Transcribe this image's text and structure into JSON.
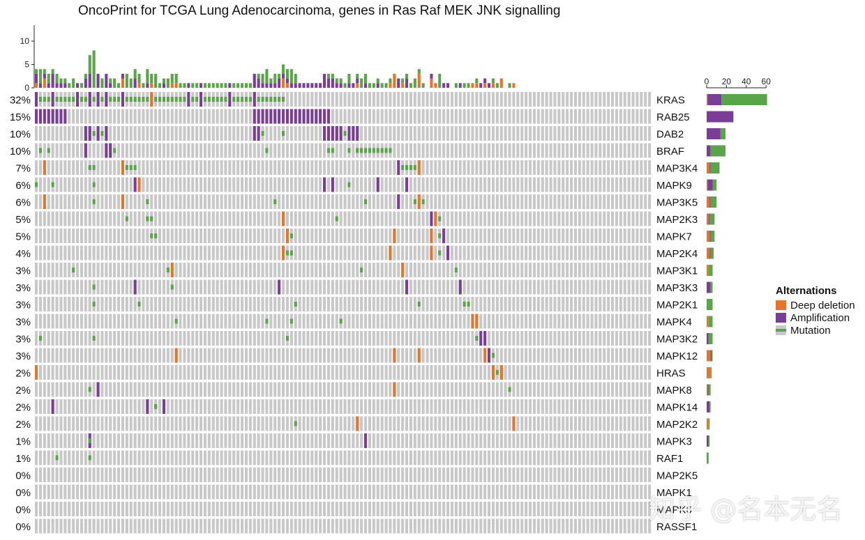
{
  "chart_data": {
    "type": "oncoprint",
    "title": "OncoPrint for TCGA Lung Adenocarcinoma, genes in Ras Raf MEK JNK signalling",
    "n_samples": 150,
    "colors": {
      "deep_deletion": "#e8742c",
      "amplification": "#7a3e96",
      "mutation": "#5aa44a",
      "background": "#c8c8c8"
    },
    "top_axis": {
      "ticks": [
        0,
        5,
        10
      ],
      "max": 13
    },
    "right_axis": {
      "ticks": [
        0,
        20,
        40,
        60
      ],
      "max": 65
    },
    "legend": {
      "title": "Alternations",
      "items": [
        {
          "label": "Deep deletion",
          "key": "deep_deletion"
        },
        {
          "label": "Amplification",
          "key": "amplification"
        },
        {
          "label": "Mutation",
          "key": "mutation"
        }
      ]
    },
    "genes": [
      {
        "name": "KRAS",
        "pct": "32%",
        "counts": {
          "del": 1,
          "amp": 14,
          "mut": 46
        },
        "alterations": [
          [
            0,
            "amp"
          ],
          [
            1,
            "mut"
          ],
          [
            2,
            "mut"
          ],
          [
            3,
            "mut"
          ],
          [
            4,
            "amp"
          ],
          [
            5,
            "mut"
          ],
          [
            6,
            "mut"
          ],
          [
            7,
            "mut"
          ],
          [
            8,
            "mut"
          ],
          [
            9,
            "mut"
          ],
          [
            10,
            "amp"
          ],
          [
            11,
            "mut"
          ],
          [
            12,
            "mut"
          ],
          [
            13,
            "amp"
          ],
          [
            14,
            "mut"
          ],
          [
            15,
            "amp"
          ],
          [
            16,
            "mut"
          ],
          [
            17,
            "amp"
          ],
          [
            18,
            "mut"
          ],
          [
            19,
            "mut"
          ],
          [
            20,
            "mut"
          ],
          [
            21,
            "amp"
          ],
          [
            22,
            "mut"
          ],
          [
            23,
            "mut"
          ],
          [
            24,
            "mut"
          ],
          [
            25,
            "mut"
          ],
          [
            26,
            "mut"
          ],
          [
            27,
            "mut"
          ],
          [
            28,
            "del"
          ],
          [
            29,
            "mut"
          ],
          [
            30,
            "mut"
          ],
          [
            31,
            "mut"
          ],
          [
            32,
            "mut"
          ],
          [
            33,
            "mut"
          ],
          [
            34,
            "mut"
          ],
          [
            35,
            "mut"
          ],
          [
            36,
            "mut"
          ],
          [
            37,
            "amp"
          ],
          [
            38,
            "mut"
          ],
          [
            39,
            "mut"
          ],
          [
            40,
            "amp"
          ],
          [
            41,
            "mut"
          ],
          [
            42,
            "mut"
          ],
          [
            43,
            "mut"
          ],
          [
            44,
            "mut"
          ],
          [
            45,
            "mut"
          ],
          [
            46,
            "mut"
          ],
          [
            47,
            "amp"
          ],
          [
            48,
            "mut"
          ],
          [
            49,
            "mut"
          ],
          [
            50,
            "mut"
          ],
          [
            51,
            "mut"
          ],
          [
            52,
            "mut"
          ],
          [
            53,
            "amp"
          ],
          [
            54,
            "mut"
          ],
          [
            55,
            "mut"
          ],
          [
            56,
            "mut"
          ],
          [
            57,
            "mut"
          ],
          [
            58,
            "mut"
          ],
          [
            59,
            "mut"
          ],
          [
            60,
            "mut"
          ]
        ]
      },
      {
        "name": "RAB25",
        "pct": "15%",
        "counts": {
          "del": 0,
          "amp": 27,
          "mut": 0
        },
        "alterations": [
          [
            0,
            "amp"
          ],
          [
            1,
            "amp"
          ],
          [
            2,
            "amp"
          ],
          [
            3,
            "amp"
          ],
          [
            4,
            "amp"
          ],
          [
            5,
            "amp"
          ],
          [
            6,
            "amp"
          ],
          [
            7,
            "amp"
          ],
          [
            53,
            "amp"
          ],
          [
            54,
            "amp"
          ],
          [
            55,
            "amp"
          ],
          [
            56,
            "amp"
          ],
          [
            57,
            "amp"
          ],
          [
            58,
            "amp"
          ],
          [
            59,
            "amp"
          ],
          [
            60,
            "amp"
          ],
          [
            61,
            "amp"
          ],
          [
            62,
            "amp"
          ],
          [
            63,
            "amp"
          ],
          [
            64,
            "amp"
          ],
          [
            65,
            "amp"
          ],
          [
            66,
            "amp"
          ],
          [
            67,
            "amp"
          ],
          [
            68,
            "amp"
          ],
          [
            69,
            "amp"
          ],
          [
            70,
            "amp"
          ],
          [
            71,
            "amp"
          ]
        ]
      },
      {
        "name": "DAB2",
        "pct": "10%",
        "counts": {
          "del": 0,
          "amp": 14,
          "mut": 5
        },
        "alterations": [
          [
            12,
            "amp"
          ],
          [
            13,
            "amp"
          ],
          [
            14,
            "mut"
          ],
          [
            15,
            "amp"
          ],
          [
            16,
            "mut"
          ],
          [
            17,
            "amp"
          ],
          [
            53,
            "amp"
          ],
          [
            54,
            "amp"
          ],
          [
            55,
            "mut"
          ],
          [
            60,
            "mut"
          ],
          [
            70,
            "amp"
          ],
          [
            71,
            "amp"
          ],
          [
            72,
            "amp"
          ],
          [
            73,
            "amp"
          ],
          [
            74,
            "amp"
          ],
          [
            75,
            "mut"
          ],
          [
            76,
            "amp"
          ],
          [
            77,
            "amp"
          ],
          [
            78,
            "amp"
          ]
        ]
      },
      {
        "name": "BRAF",
        "pct": "10%",
        "counts": {
          "del": 0,
          "amp": 4,
          "mut": 15
        },
        "alterations": [
          [
            1,
            "mut"
          ],
          [
            3,
            "mut"
          ],
          [
            12,
            "amp"
          ],
          [
            17,
            "amp"
          ],
          [
            18,
            "amp"
          ],
          [
            19,
            "mut"
          ],
          [
            56,
            "mut"
          ],
          [
            71,
            "mut"
          ],
          [
            72,
            "mut"
          ],
          [
            76,
            "mut"
          ],
          [
            78,
            "mut"
          ],
          [
            79,
            "mut"
          ],
          [
            80,
            "mut"
          ],
          [
            81,
            "mut"
          ],
          [
            82,
            "mut"
          ],
          [
            83,
            "mut"
          ],
          [
            84,
            "mut"
          ],
          [
            85,
            "mut"
          ],
          [
            86,
            "mut"
          ]
        ]
      },
      {
        "name": "MAP3K4",
        "pct": "7%",
        "counts": {
          "del": 3,
          "amp": 1,
          "mut": 9
        },
        "alterations": [
          [
            2,
            "del"
          ],
          [
            13,
            "mut"
          ],
          [
            14,
            "mut"
          ],
          [
            21,
            "del"
          ],
          [
            22,
            "mut"
          ],
          [
            23,
            "mut"
          ],
          [
            24,
            "mut"
          ],
          [
            88,
            "amp"
          ],
          [
            89,
            "mut"
          ],
          [
            90,
            "mut"
          ],
          [
            91,
            "mut"
          ],
          [
            92,
            "mut"
          ],
          [
            93,
            "del"
          ]
        ]
      },
      {
        "name": "MAPK9",
        "pct": "6%",
        "counts": {
          "del": 1,
          "amp": 5,
          "mut": 4
        },
        "alterations": [
          [
            0,
            "mut"
          ],
          [
            4,
            "mut"
          ],
          [
            14,
            "mut"
          ],
          [
            24,
            "amp"
          ],
          [
            25,
            "del"
          ],
          [
            70,
            "amp"
          ],
          [
            72,
            "amp"
          ],
          [
            76,
            "mut"
          ],
          [
            83,
            "amp"
          ],
          [
            90,
            "amp"
          ]
        ]
      },
      {
        "name": "MAP3K5",
        "pct": "6%",
        "counts": {
          "del": 3,
          "amp": 1,
          "mut": 6
        },
        "alterations": [
          [
            2,
            "del"
          ],
          [
            14,
            "mut"
          ],
          [
            21,
            "del"
          ],
          [
            27,
            "mut"
          ],
          [
            58,
            "mut"
          ],
          [
            80,
            "mut"
          ],
          [
            88,
            "amp"
          ],
          [
            92,
            "mut"
          ],
          [
            93,
            "del"
          ],
          [
            94,
            "mut"
          ]
        ]
      },
      {
        "name": "MAP2K3",
        "pct": "5%",
        "counts": {
          "del": 2,
          "amp": 1,
          "mut": 5
        },
        "alterations": [
          [
            22,
            "mut"
          ],
          [
            27,
            "mut"
          ],
          [
            28,
            "mut"
          ],
          [
            60,
            "del"
          ],
          [
            73,
            "mut"
          ],
          [
            96,
            "amp"
          ],
          [
            97,
            "del"
          ],
          [
            98,
            "mut"
          ]
        ]
      },
      {
        "name": "MAPK7",
        "pct": "5%",
        "counts": {
          "del": 3,
          "amp": 1,
          "mut": 4
        },
        "alterations": [
          [
            28,
            "mut"
          ],
          [
            29,
            "mut"
          ],
          [
            61,
            "del"
          ],
          [
            62,
            "mut"
          ],
          [
            87,
            "del"
          ],
          [
            96,
            "del"
          ],
          [
            98,
            "mut"
          ],
          [
            99,
            "amp"
          ]
        ]
      },
      {
        "name": "MAP2K4",
        "pct": "4%",
        "counts": {
          "del": 3,
          "amp": 1,
          "mut": 3
        },
        "alterations": [
          [
            60,
            "del"
          ],
          [
            61,
            "mut"
          ],
          [
            62,
            "mut"
          ],
          [
            86,
            "del"
          ],
          [
            96,
            "del"
          ],
          [
            98,
            "mut"
          ],
          [
            100,
            "amp"
          ]
        ]
      },
      {
        "name": "MAP3K1",
        "pct": "3%",
        "counts": {
          "del": 2,
          "amp": 0,
          "mut": 4
        },
        "alterations": [
          [
            9,
            "mut"
          ],
          [
            32,
            "mut"
          ],
          [
            33,
            "del"
          ],
          [
            79,
            "mut"
          ],
          [
            89,
            "del"
          ],
          [
            102,
            "mut"
          ]
        ]
      },
      {
        "name": "MAP3K3",
        "pct": "3%",
        "counts": {
          "del": 0,
          "amp": 4,
          "mut": 2
        },
        "alterations": [
          [
            14,
            "mut"
          ],
          [
            24,
            "amp"
          ],
          [
            33,
            "mut"
          ],
          [
            59,
            "amp"
          ],
          [
            90,
            "amp"
          ],
          [
            103,
            "amp"
          ]
        ]
      },
      {
        "name": "MAP2K1",
        "pct": "3%",
        "counts": {
          "del": 0,
          "amp": 0,
          "mut": 6
        },
        "alterations": [
          [
            14,
            "mut"
          ],
          [
            25,
            "mut"
          ],
          [
            63,
            "mut"
          ],
          [
            93,
            "mut"
          ],
          [
            104,
            "mut"
          ],
          [
            105,
            "mut"
          ]
        ]
      },
      {
        "name": "MAPK4",
        "pct": "3%",
        "counts": {
          "del": 2,
          "amp": 0,
          "mut": 4
        },
        "alterations": [
          [
            34,
            "mut"
          ],
          [
            56,
            "mut"
          ],
          [
            62,
            "mut"
          ],
          [
            74,
            "mut"
          ],
          [
            106,
            "del"
          ],
          [
            107,
            "del"
          ]
        ]
      },
      {
        "name": "MAP3K2",
        "pct": "3%",
        "counts": {
          "del": 0,
          "amp": 2,
          "mut": 4
        },
        "alterations": [
          [
            1,
            "mut"
          ],
          [
            14,
            "mut"
          ],
          [
            61,
            "mut"
          ],
          [
            107,
            "mut"
          ],
          [
            108,
            "amp"
          ],
          [
            109,
            "amp"
          ]
        ]
      },
      {
        "name": "MAPK12",
        "pct": "3%",
        "counts": {
          "del": 4,
          "amp": 1,
          "mut": 1
        },
        "alterations": [
          [
            34,
            "del"
          ],
          [
            87,
            "del"
          ],
          [
            93,
            "del"
          ],
          [
            109,
            "del"
          ],
          [
            110,
            "amp"
          ],
          [
            111,
            "mut"
          ]
        ]
      },
      {
        "name": "HRAS",
        "pct": "2%",
        "counts": {
          "del": 4,
          "amp": 0,
          "mut": 1
        },
        "alterations": [
          [
            0,
            "del"
          ],
          [
            111,
            "del"
          ],
          [
            112,
            "mut"
          ],
          [
            113,
            "del"
          ],
          [
            113,
            "del"
          ]
        ]
      },
      {
        "name": "MAPK8",
        "pct": "2%",
        "counts": {
          "del": 1,
          "amp": 1,
          "mut": 2
        },
        "alterations": [
          [
            13,
            "mut"
          ],
          [
            15,
            "amp"
          ],
          [
            87,
            "del"
          ],
          [
            115,
            "mut"
          ]
        ]
      },
      {
        "name": "MAPK14",
        "pct": "2%",
        "counts": {
          "del": 0,
          "amp": 3,
          "mut": 1
        },
        "alterations": [
          [
            4,
            "amp"
          ],
          [
            27,
            "amp"
          ],
          [
            29,
            "mut"
          ],
          [
            31,
            "amp"
          ]
        ]
      },
      {
        "name": "MAP2K2",
        "pct": "2%",
        "counts": {
          "del": 2,
          "amp": 0,
          "mut": 1
        },
        "alterations": [
          [
            63,
            "mut"
          ],
          [
            78,
            "del"
          ],
          [
            116,
            "del"
          ]
        ]
      },
      {
        "name": "MAPK3",
        "pct": "1%",
        "counts": {
          "del": 0,
          "amp": 2,
          "mut": 1
        },
        "alterations": [
          [
            13,
            "amp"
          ],
          [
            13,
            "mut"
          ],
          [
            80,
            "amp"
          ]
        ]
      },
      {
        "name": "RAF1",
        "pct": "1%",
        "counts": {
          "del": 0,
          "amp": 0,
          "mut": 2
        },
        "alterations": [
          [
            5,
            "mut"
          ],
          [
            13,
            "mut"
          ]
        ]
      },
      {
        "name": "MAP2K5",
        "pct": "0%",
        "counts": {
          "del": 0,
          "amp": 0,
          "mut": 0
        },
        "alterations": []
      },
      {
        "name": "MAPK1",
        "pct": "0%",
        "counts": {
          "del": 0,
          "amp": 0,
          "mut": 0
        },
        "alterations": []
      },
      {
        "name": "MAPK6",
        "pct": "0%",
        "counts": {
          "del": 0,
          "amp": 0,
          "mut": 0
        },
        "alterations": []
      },
      {
        "name": "RASSF1",
        "pct": "0%",
        "counts": {
          "del": 0,
          "amp": 0,
          "mut": 0
        },
        "alterations": []
      }
    ]
  },
  "watermark": "知乎 @名本无名"
}
